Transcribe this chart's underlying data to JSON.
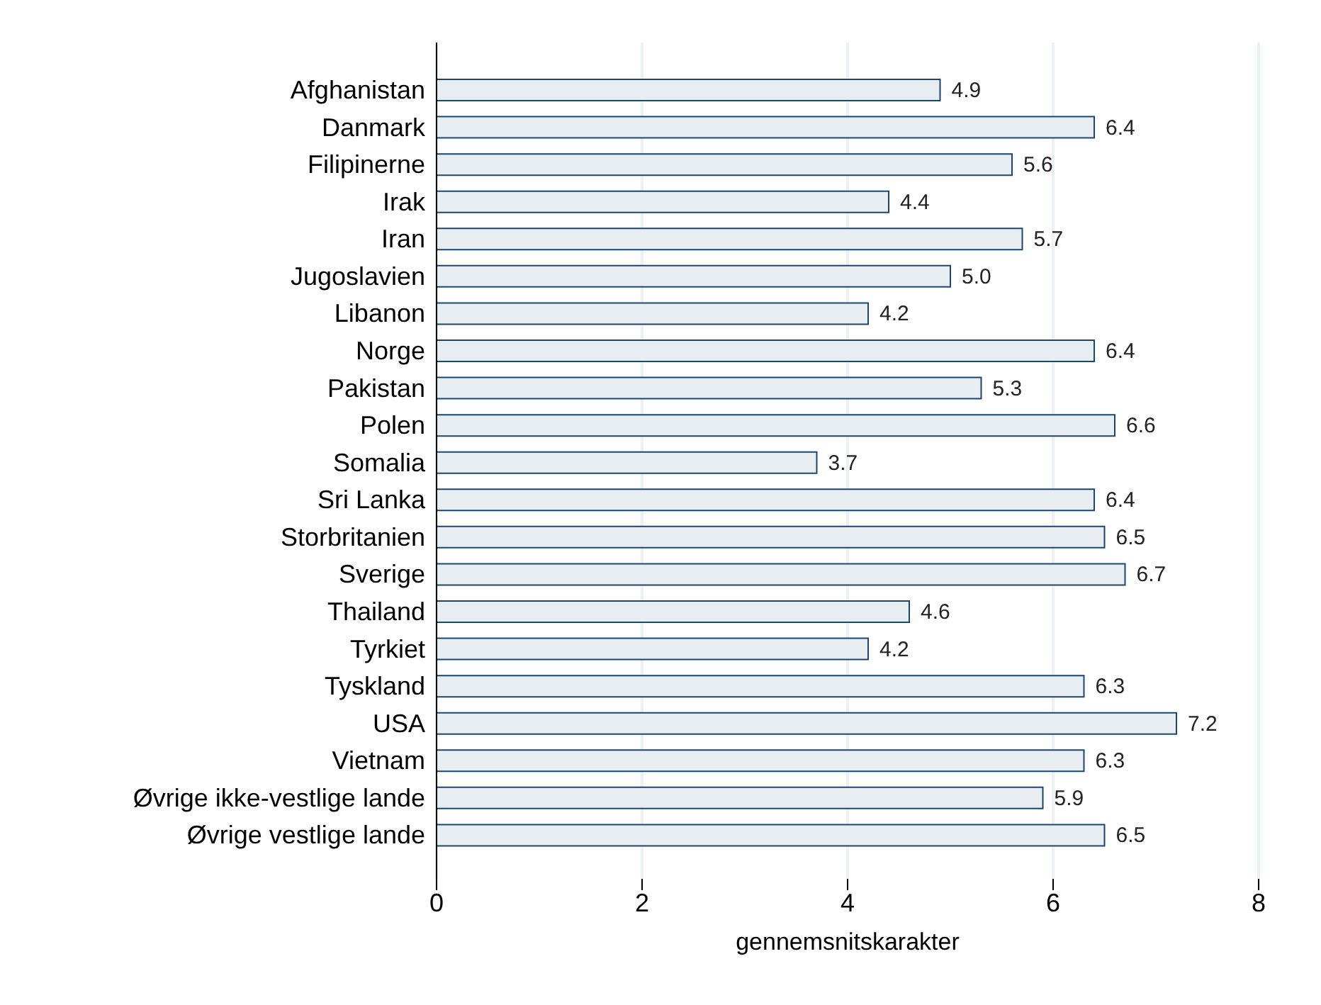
{
  "chart_data": {
    "type": "bar",
    "orientation": "horizontal",
    "xlabel": "gennemsnitskarakter",
    "categories": [
      "Afghanistan",
      "Danmark",
      "Filipinerne",
      "Irak",
      "Iran",
      "Jugoslavien",
      "Libanon",
      "Norge",
      "Pakistan",
      "Polen",
      "Somalia",
      "Sri Lanka",
      "Storbritanien",
      "Sverige",
      "Thailand",
      "Tyrkiet",
      "Tyskland",
      "USA",
      "Vietnam",
      "Øvrige ikke-vestlige lande",
      "Øvrige vestlige lande"
    ],
    "values": [
      4.9,
      6.4,
      5.6,
      4.4,
      5.7,
      5.0,
      4.2,
      6.4,
      5.3,
      6.6,
      3.7,
      6.4,
      6.5,
      6.7,
      4.6,
      4.2,
      6.3,
      7.2,
      6.3,
      5.9,
      6.5
    ],
    "value_labels": [
      "4.9",
      "6.4",
      "5.6",
      "4.4",
      "5.7",
      "5.0",
      "4.2",
      "6.4",
      "5.3",
      "6.6",
      "3.7",
      "6.4",
      "6.5",
      "6.7",
      "4.6",
      "4.2",
      "6.3",
      "7.2",
      "6.3",
      "5.9",
      "6.5"
    ],
    "color": "#e8edf2",
    "xlim": [
      0,
      8
    ],
    "xticks": [
      0,
      2,
      4,
      6,
      8
    ],
    "grid": "x",
    "legend": false
  }
}
